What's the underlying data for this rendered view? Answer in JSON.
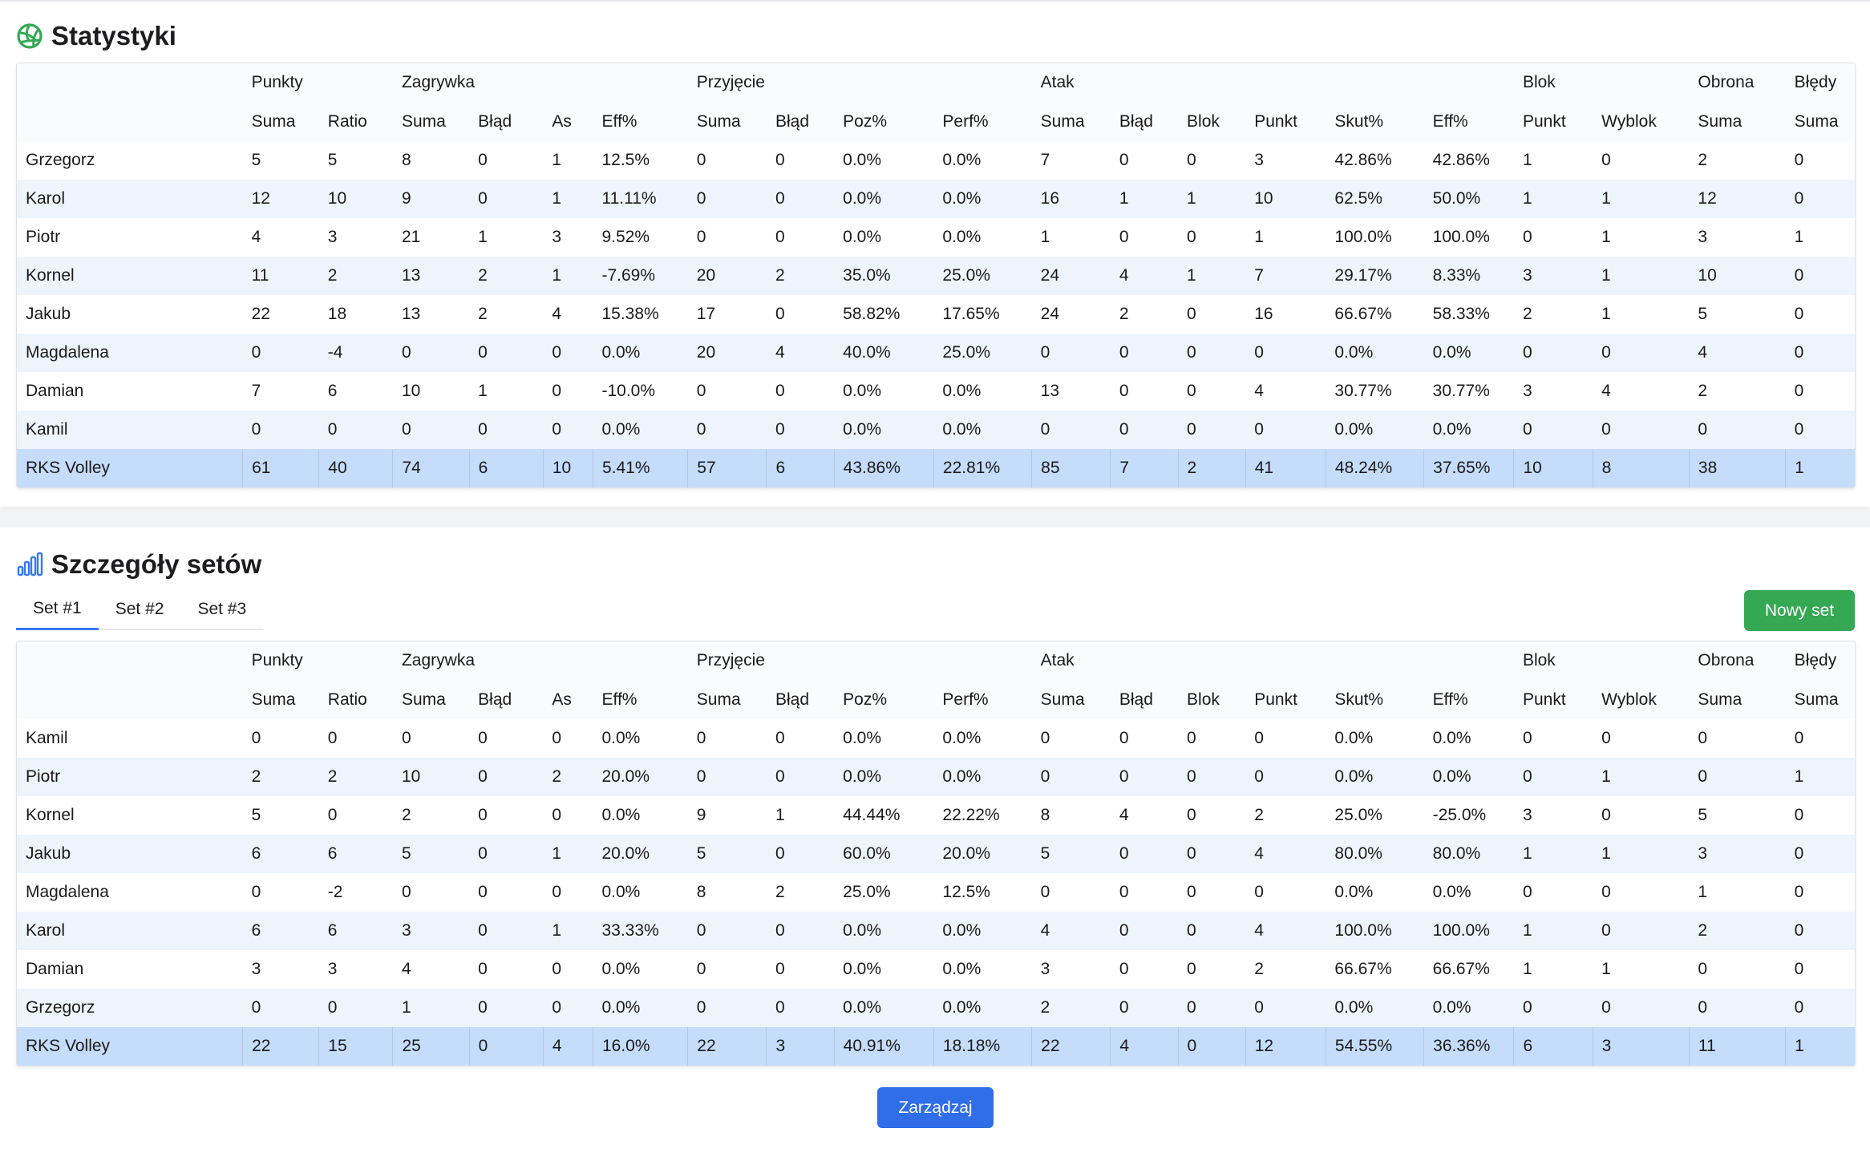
{
  "stats": {
    "title": "Statystyki",
    "groups": [
      "",
      "Punkty",
      "Zagrywka",
      "Przyjęcie",
      "Atak",
      "Blok",
      "Obrona",
      "Błędy"
    ],
    "subheaders": [
      "",
      "Suma",
      "Ratio",
      "Suma",
      "Błąd",
      "As",
      "Eff%",
      "Suma",
      "Błąd",
      "Poz%",
      "Perf%",
      "Suma",
      "Błąd",
      "Blok",
      "Punkt",
      "Skut%",
      "Eff%",
      "Punkt",
      "Wyblok",
      "Suma",
      "Suma"
    ],
    "rows": [
      [
        "Grzegorz",
        "5",
        "5",
        "8",
        "0",
        "1",
        "12.5%",
        "0",
        "0",
        "0.0%",
        "0.0%",
        "7",
        "0",
        "0",
        "3",
        "42.86%",
        "42.86%",
        "1",
        "0",
        "2",
        "0"
      ],
      [
        "Karol",
        "12",
        "10",
        "9",
        "0",
        "1",
        "11.11%",
        "0",
        "0",
        "0.0%",
        "0.0%",
        "16",
        "1",
        "1",
        "10",
        "62.5%",
        "50.0%",
        "1",
        "1",
        "12",
        "0"
      ],
      [
        "Piotr",
        "4",
        "3",
        "21",
        "1",
        "3",
        "9.52%",
        "0",
        "0",
        "0.0%",
        "0.0%",
        "1",
        "0",
        "0",
        "1",
        "100.0%",
        "100.0%",
        "0",
        "1",
        "3",
        "1"
      ],
      [
        "Kornel",
        "11",
        "2",
        "13",
        "2",
        "1",
        "-7.69%",
        "20",
        "2",
        "35.0%",
        "25.0%",
        "24",
        "4",
        "1",
        "7",
        "29.17%",
        "8.33%",
        "3",
        "1",
        "10",
        "0"
      ],
      [
        "Jakub",
        "22",
        "18",
        "13",
        "2",
        "4",
        "15.38%",
        "17",
        "0",
        "58.82%",
        "17.65%",
        "24",
        "2",
        "0",
        "16",
        "66.67%",
        "58.33%",
        "2",
        "1",
        "5",
        "0"
      ],
      [
        "Magdalena",
        "0",
        "-4",
        "0",
        "0",
        "0",
        "0.0%",
        "20",
        "4",
        "40.0%",
        "25.0%",
        "0",
        "0",
        "0",
        "0",
        "0.0%",
        "0.0%",
        "0",
        "0",
        "4",
        "0"
      ],
      [
        "Damian",
        "7",
        "6",
        "10",
        "1",
        "0",
        "-10.0%",
        "0",
        "0",
        "0.0%",
        "0.0%",
        "13",
        "0",
        "0",
        "4",
        "30.77%",
        "30.77%",
        "3",
        "4",
        "2",
        "0"
      ],
      [
        "Kamil",
        "0",
        "0",
        "0",
        "0",
        "0",
        "0.0%",
        "0",
        "0",
        "0.0%",
        "0.0%",
        "0",
        "0",
        "0",
        "0",
        "0.0%",
        "0.0%",
        "0",
        "0",
        "0",
        "0"
      ]
    ],
    "total": [
      "RKS Volley",
      "61",
      "40",
      "74",
      "6",
      "10",
      "5.41%",
      "57",
      "6",
      "43.86%",
      "22.81%",
      "85",
      "7",
      "2",
      "41",
      "48.24%",
      "37.65%",
      "10",
      "8",
      "38",
      "1"
    ]
  },
  "sets": {
    "title": "Szczegóły setów",
    "tabs": [
      "Set #1",
      "Set #2",
      "Set #3"
    ],
    "active_tab": "Set #1",
    "new_set_label": "Nowy set",
    "groups": [
      "",
      "Punkty",
      "Zagrywka",
      "Przyjęcie",
      "Atak",
      "Blok",
      "Obrona",
      "Błędy"
    ],
    "subheaders": [
      "",
      "Suma",
      "Ratio",
      "Suma",
      "Błąd",
      "As",
      "Eff%",
      "Suma",
      "Błąd",
      "Poz%",
      "Perf%",
      "Suma",
      "Błąd",
      "Blok",
      "Punkt",
      "Skut%",
      "Eff%",
      "Punkt",
      "Wyblok",
      "Suma",
      "Suma"
    ],
    "rows": [
      [
        "Kamil",
        "0",
        "0",
        "0",
        "0",
        "0",
        "0.0%",
        "0",
        "0",
        "0.0%",
        "0.0%",
        "0",
        "0",
        "0",
        "0",
        "0.0%",
        "0.0%",
        "0",
        "0",
        "0",
        "0"
      ],
      [
        "Piotr",
        "2",
        "2",
        "10",
        "0",
        "2",
        "20.0%",
        "0",
        "0",
        "0.0%",
        "0.0%",
        "0",
        "0",
        "0",
        "0",
        "0.0%",
        "0.0%",
        "0",
        "1",
        "0",
        "1"
      ],
      [
        "Kornel",
        "5",
        "0",
        "2",
        "0",
        "0",
        "0.0%",
        "9",
        "1",
        "44.44%",
        "22.22%",
        "8",
        "4",
        "0",
        "2",
        "25.0%",
        "-25.0%",
        "3",
        "0",
        "5",
        "0"
      ],
      [
        "Jakub",
        "6",
        "6",
        "5",
        "0",
        "1",
        "20.0%",
        "5",
        "0",
        "60.0%",
        "20.0%",
        "5",
        "0",
        "0",
        "4",
        "80.0%",
        "80.0%",
        "1",
        "1",
        "3",
        "0"
      ],
      [
        "Magdalena",
        "0",
        "-2",
        "0",
        "0",
        "0",
        "0.0%",
        "8",
        "2",
        "25.0%",
        "12.5%",
        "0",
        "0",
        "0",
        "0",
        "0.0%",
        "0.0%",
        "0",
        "0",
        "1",
        "0"
      ],
      [
        "Karol",
        "6",
        "6",
        "3",
        "0",
        "1",
        "33.33%",
        "0",
        "0",
        "0.0%",
        "0.0%",
        "4",
        "0",
        "0",
        "4",
        "100.0%",
        "100.0%",
        "1",
        "0",
        "2",
        "0"
      ],
      [
        "Damian",
        "3",
        "3",
        "4",
        "0",
        "0",
        "0.0%",
        "0",
        "0",
        "0.0%",
        "0.0%",
        "3",
        "0",
        "0",
        "2",
        "66.67%",
        "66.67%",
        "1",
        "1",
        "0",
        "0"
      ],
      [
        "Grzegorz",
        "0",
        "0",
        "1",
        "0",
        "0",
        "0.0%",
        "0",
        "0",
        "0.0%",
        "0.0%",
        "2",
        "0",
        "0",
        "0",
        "0.0%",
        "0.0%",
        "0",
        "0",
        "0",
        "0"
      ]
    ],
    "total": [
      "RKS Volley",
      "22",
      "15",
      "25",
      "0",
      "4",
      "16.0%",
      "22",
      "3",
      "40.91%",
      "18.18%",
      "22",
      "4",
      "0",
      "12",
      "54.55%",
      "36.36%",
      "6",
      "3",
      "11",
      "1"
    ]
  },
  "manage_label": "Zarządzaj",
  "colors": {
    "accent_green": "#34a853",
    "accent_blue": "#2f6ee8",
    "row_alt": "#eef4fc",
    "row_total": "#c5dcfa"
  }
}
